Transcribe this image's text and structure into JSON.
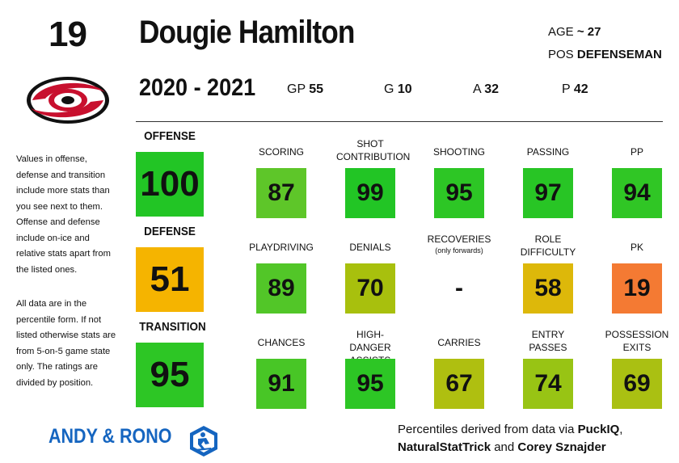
{
  "player": {
    "number": "19",
    "name": "Dougie Hamilton",
    "age_label": "AGE",
    "age_value": "~ 27",
    "pos_label": "POS",
    "pos_value": "DEFENSEMAN",
    "team_logo": "carolina-hurricanes-logo"
  },
  "season": {
    "label": "2020 - 2021",
    "stats": [
      {
        "label": "GP",
        "value": "55"
      },
      {
        "label": "G",
        "value": "10"
      },
      {
        "label": "A",
        "value": "32"
      },
      {
        "label": "P",
        "value": "42"
      }
    ]
  },
  "notes": {
    "para1": "Values in offense, defense and transition include more stats than you see next to them. Offense and defense include on-ice and relative stats apart from the listed ones.",
    "para2": "All data are in the percentile form. If not listed otherwise stats are from 5-on-5 game state only. The ratings are divided by position."
  },
  "categories": [
    {
      "label": "OFFENSE",
      "value": "100",
      "color": "#22c525",
      "subs": [
        {
          "label": "SCORING",
          "note": "",
          "value": "87",
          "color": "#5ec629"
        },
        {
          "label": "SHOT CONTRIBUTION",
          "note": "",
          "value": "99",
          "color": "#22c525"
        },
        {
          "label": "SHOOTING",
          "note": "",
          "value": "95",
          "color": "#2dc625"
        },
        {
          "label": "PASSING",
          "note": "",
          "value": "97",
          "color": "#28c525"
        },
        {
          "label": "PP",
          "note": "",
          "value": "94",
          "color": "#30c625"
        }
      ]
    },
    {
      "label": "DEFENSE",
      "value": "51",
      "color": "#f5b400",
      "subs": [
        {
          "label": "PLAYDRIVING",
          "note": "",
          "value": "89",
          "color": "#52c628"
        },
        {
          "label": "DENIALS",
          "note": "",
          "value": "70",
          "color": "#a8c00d"
        },
        {
          "label": "RECOVERIES",
          "note": "(only forwards)",
          "value": "-",
          "color": ""
        },
        {
          "label": "ROLE DIFFICULTY",
          "note": "",
          "value": "58",
          "color": "#ddb80a"
        },
        {
          "label": "PK",
          "note": "",
          "value": "19",
          "color": "#f47a33"
        }
      ]
    },
    {
      "label": "TRANSITION",
      "value": "95",
      "color": "#2dc625",
      "subs": [
        {
          "label": "CHANCES",
          "note": "",
          "value": "91",
          "color": "#48c626"
        },
        {
          "label": "HIGH-DANGER ASSISTS",
          "note": "",
          "value": "95",
          "color": "#2dc625"
        },
        {
          "label": "CARRIES",
          "note": "",
          "value": "67",
          "color": "#afbf10"
        },
        {
          "label": "ENTRY PASSES",
          "note": "",
          "value": "74",
          "color": "#98c414"
        },
        {
          "label": "POSSESSION EXITS",
          "note": "",
          "value": "69",
          "color": "#aac012"
        }
      ]
    }
  ],
  "footer": {
    "brand": "ANDY & RONO",
    "brand_icon": "hockey-player-icon",
    "credit_prefix": "Percentiles derived from data via ",
    "credit_src1": "PuckIQ",
    "credit_sep": ",",
    "credit_src2": "NaturalStatTrick",
    "credit_and": " and ",
    "credit_src3": "Corey Sznajder",
    "brand_color": "#1565c0"
  }
}
